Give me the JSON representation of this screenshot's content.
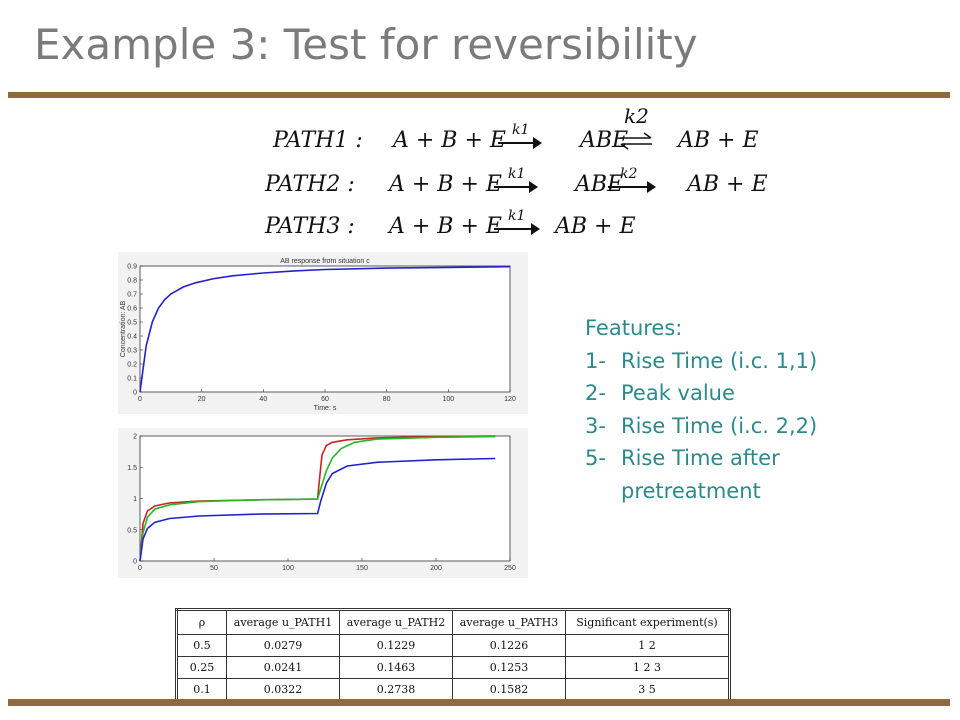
{
  "title": "Example 3: Test for reversibility",
  "equations": {
    "path1": {
      "name": "PATH1",
      "lhs": "A + B + E",
      "k_fwd": "k1",
      "mid": "ABE",
      "k_rev_label": "k2",
      "rhs": "AB + E"
    },
    "path2": {
      "name": "PATH2",
      "lhs": "A + B + E",
      "k_fwd": "k1",
      "mid": "ABE",
      "k2": "k2",
      "rhs": "AB + E"
    },
    "path3": {
      "name": "PATH3",
      "lhs": "A + B + E",
      "k_fwd": "k1",
      "rhs": "AB + E"
    }
  },
  "features": {
    "heading": "Features:",
    "items": [
      {
        "num": "1-",
        "text": "Rise Time (i.c. 1,1)"
      },
      {
        "num": "2-",
        "text": "Peak value"
      },
      {
        "num": "3-",
        "text": "Rise Time (i.c. 2,2)"
      },
      {
        "num": "5-",
        "text": "Rise Time after pretreatment"
      }
    ]
  },
  "chart_data": [
    {
      "type": "line",
      "title": "AB response from situation c",
      "xlabel": "Time: s",
      "ylabel": "Concentration: AB",
      "xlim": [
        0,
        120
      ],
      "ylim": [
        0,
        0.9
      ],
      "xticks": [
        "0",
        "20",
        "40",
        "60",
        "80",
        "100",
        "120"
      ],
      "yticks": [
        "0",
        "0.1",
        "0.2",
        "0.3",
        "0.4",
        "0.5",
        "0.6",
        "0.7",
        "0.8",
        "0.9"
      ],
      "colors": [
        "#2222cc"
      ],
      "series": [
        {
          "x": [
            0,
            2,
            4,
            6,
            8,
            10,
            14,
            18,
            24,
            30,
            40,
            50,
            60,
            80,
            100,
            120
          ],
          "values": [
            0,
            0.33,
            0.5,
            0.6,
            0.66,
            0.7,
            0.75,
            0.78,
            0.81,
            0.83,
            0.85,
            0.865,
            0.875,
            0.885,
            0.89,
            0.895
          ]
        }
      ]
    },
    {
      "type": "line",
      "title": "",
      "xlabel": "",
      "ylabel": "",
      "xlim": [
        0,
        250
      ],
      "ylim": [
        0,
        2
      ],
      "xticks": [
        "0",
        "50",
        "100",
        "150",
        "200",
        "250"
      ],
      "yticks": [
        "0",
        "0.5",
        "1",
        "1.5",
        "2"
      ],
      "colors": [
        "#cc2222",
        "#22bb22",
        "#2222cc"
      ],
      "series": [
        {
          "x": [
            0,
            2,
            5,
            10,
            20,
            40,
            80,
            120,
            121,
            123,
            126,
            130,
            140,
            160,
            200,
            240
          ],
          "values": [
            0,
            0.6,
            0.8,
            0.88,
            0.93,
            0.96,
            0.98,
            0.99,
            1.25,
            1.7,
            1.85,
            1.9,
            1.94,
            1.97,
            1.99,
            2.0
          ]
        },
        {
          "x": [
            0,
            2,
            5,
            10,
            20,
            40,
            80,
            120,
            122,
            126,
            130,
            136,
            145,
            160,
            200,
            240
          ],
          "values": [
            0,
            0.45,
            0.7,
            0.83,
            0.9,
            0.95,
            0.98,
            0.99,
            1.15,
            1.45,
            1.65,
            1.8,
            1.9,
            1.95,
            1.98,
            1.99
          ]
        },
        {
          "x": [
            0,
            2,
            5,
            10,
            20,
            40,
            80,
            120,
            122,
            126,
            130,
            140,
            160,
            200,
            240
          ],
          "values": [
            0,
            0.35,
            0.52,
            0.62,
            0.68,
            0.72,
            0.75,
            0.76,
            0.95,
            1.25,
            1.4,
            1.52,
            1.58,
            1.62,
            1.64
          ]
        }
      ]
    },
    {
      "type": "table",
      "columns": [
        "ρ",
        "average u_PATH1",
        "average u_PATH2",
        "average u_PATH3",
        "Significant experiment(s)"
      ],
      "rows": [
        [
          "0.5",
          "0.0279",
          "0.1229",
          "0.1226",
          "1 2"
        ],
        [
          "0.25",
          "0.0241",
          "0.1463",
          "0.1253",
          "1 2 3"
        ],
        [
          "0.1",
          "0.0322",
          "0.2738",
          "0.1582",
          "3 5"
        ]
      ]
    }
  ]
}
